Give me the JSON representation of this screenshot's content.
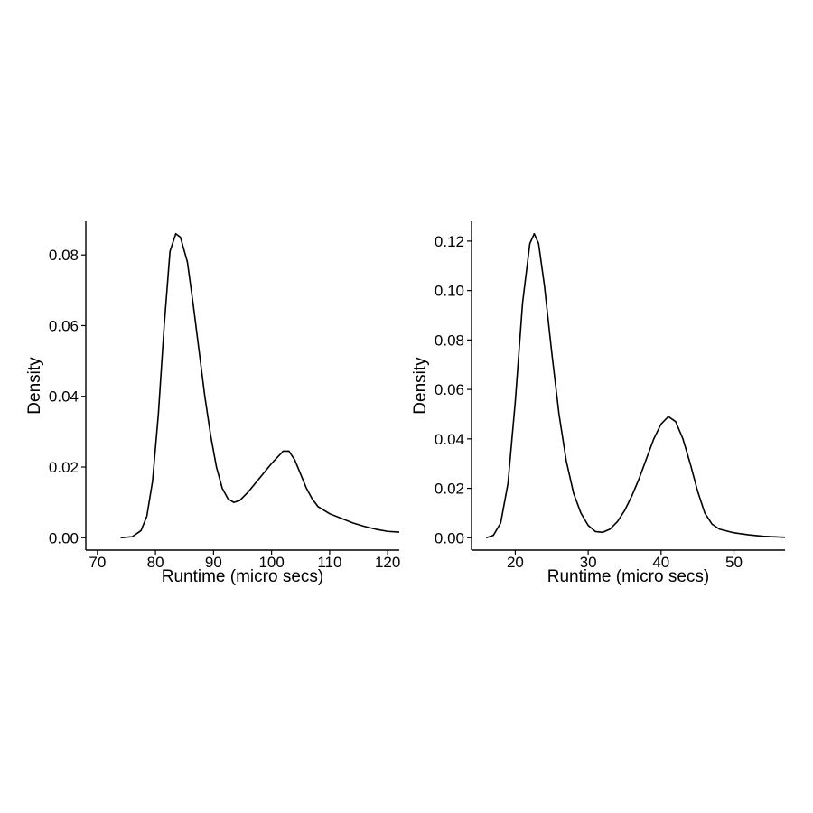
{
  "chart_data": [
    {
      "type": "line",
      "xlabel": "Runtime (micro secs)",
      "ylabel": "Density",
      "xlim": [
        68,
        122
      ],
      "ylim": [
        -0.0035,
        0.0895
      ],
      "x_ticks": [
        70,
        80,
        90,
        100,
        110,
        120
      ],
      "x_tick_labels": [
        "70",
        "80",
        "90",
        "100",
        "110",
        "120"
      ],
      "y_ticks": [
        0.0,
        0.02,
        0.04,
        0.06,
        0.08
      ],
      "y_tick_labels": [
        "0.00",
        "0.02",
        "0.04",
        "0.06",
        "0.08"
      ],
      "grid": false,
      "series": [
        {
          "x": [
            74.0,
            76.0,
            77.5,
            78.5,
            79.5,
            80.5,
            81.5,
            82.5,
            83.5,
            84.3,
            85.5,
            86.5,
            87.5,
            88.5,
            89.5,
            90.5,
            91.5,
            92.5,
            93.5,
            94.5,
            96,
            98,
            100,
            102,
            103,
            104,
            105,
            106,
            107,
            108,
            110,
            112,
            114,
            116,
            118,
            120,
            122
          ],
          "y": [
            0.0,
            0.0003,
            0.002,
            0.006,
            0.016,
            0.035,
            0.06,
            0.081,
            0.086,
            0.085,
            0.078,
            0.066,
            0.053,
            0.04,
            0.029,
            0.02,
            0.014,
            0.011,
            0.01,
            0.0105,
            0.013,
            0.017,
            0.021,
            0.0245,
            0.0245,
            0.022,
            0.018,
            0.014,
            0.011,
            0.0088,
            0.0068,
            0.0055,
            0.0042,
            0.0032,
            0.0024,
            0.0018,
            0.0016
          ]
        }
      ]
    },
    {
      "type": "line",
      "xlabel": "Runtime (micro secs)",
      "ylabel": "Density",
      "xlim": [
        14,
        57
      ],
      "ylim": [
        -0.005,
        0.128
      ],
      "x_ticks": [
        20,
        30,
        40,
        50
      ],
      "x_tick_labels": [
        "20",
        "30",
        "40",
        "50"
      ],
      "y_ticks": [
        0.0,
        0.02,
        0.04,
        0.06,
        0.08,
        0.1,
        0.12
      ],
      "y_tick_labels": [
        "0.00",
        "0.02",
        "0.04",
        "0.06",
        "0.08",
        "0.10",
        "0.12"
      ],
      "grid": false,
      "series": [
        {
          "x": [
            16,
            17,
            18,
            19,
            20,
            21,
            22,
            22.6,
            23.2,
            24,
            25,
            26,
            27,
            28,
            29,
            30,
            31,
            32,
            33,
            34,
            35,
            36,
            37,
            38,
            39,
            40,
            41,
            42,
            43,
            44,
            45,
            46,
            47,
            48,
            50,
            52,
            54,
            57
          ],
          "y": [
            0.0,
            0.001,
            0.006,
            0.022,
            0.055,
            0.095,
            0.119,
            0.123,
            0.119,
            0.102,
            0.075,
            0.05,
            0.031,
            0.018,
            0.01,
            0.005,
            0.0025,
            0.0022,
            0.0035,
            0.0065,
            0.011,
            0.017,
            0.024,
            0.032,
            0.04,
            0.046,
            0.049,
            0.047,
            0.04,
            0.03,
            0.019,
            0.01,
            0.0055,
            0.0035,
            0.002,
            0.0012,
            0.0006,
            0.0002
          ]
        }
      ]
    }
  ]
}
